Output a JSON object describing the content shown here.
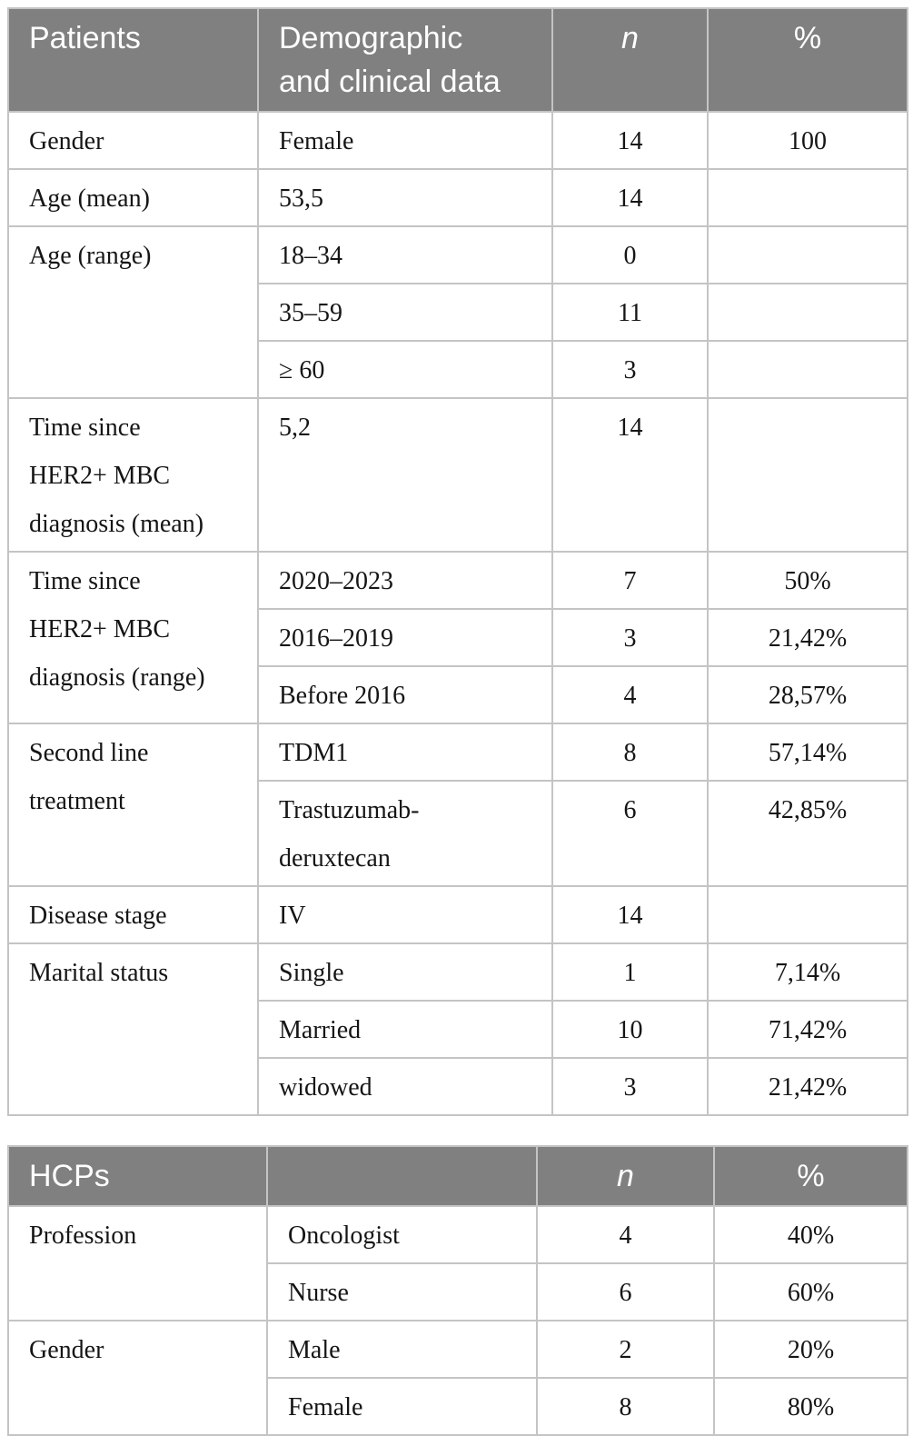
{
  "colors": {
    "header_bg": "#808080",
    "header_text": "#ffffff",
    "grid_line": "#c4c4c4",
    "body_text": "#151515"
  },
  "patients_table": {
    "header": {
      "col1": "Patients",
      "col2": "Demographic\nand clinical data",
      "col3": "n",
      "col4": "%"
    },
    "sections": [
      {
        "label": "Gender",
        "rows": [
          {
            "value": "Female",
            "n": "14",
            "pct": "100"
          }
        ]
      },
      {
        "label": "Age (mean)",
        "rows": [
          {
            "value": "53,5",
            "n": "14",
            "pct": ""
          }
        ]
      },
      {
        "label": "Age (range)",
        "rows": [
          {
            "value": "18–34",
            "n": "0",
            "pct": ""
          },
          {
            "value": "35–59",
            "n": "11",
            "pct": ""
          },
          {
            "value": "≥ 60",
            "n": "3",
            "pct": ""
          }
        ]
      },
      {
        "label": "Time since\nHER2+ MBC\ndiagnosis (mean)",
        "rows": [
          {
            "value": "5,2",
            "n": "14",
            "pct": ""
          }
        ]
      },
      {
        "label": "Time since\nHER2+ MBC\ndiagnosis (range)",
        "rows": [
          {
            "value": "2020–2023",
            "n": "7",
            "pct": "50%"
          },
          {
            "value": "2016–2019",
            "n": "3",
            "pct": "21,42%"
          },
          {
            "value": "Before 2016",
            "n": "4",
            "pct": "28,57%"
          }
        ]
      },
      {
        "label": "Second line\ntreatment",
        "rows": [
          {
            "value": "TDM1",
            "n": "8",
            "pct": "57,14%"
          },
          {
            "value": "Trastuzumab-\nderuxtecan",
            "n": "6",
            "pct": "42,85%"
          }
        ]
      },
      {
        "label": "Disease stage",
        "rows": [
          {
            "value": "IV",
            "n": "14",
            "pct": ""
          }
        ]
      },
      {
        "label": "Marital status",
        "rows": [
          {
            "value": "Single",
            "n": "1",
            "pct": "7,14%"
          },
          {
            "value": "Married",
            "n": "10",
            "pct": "71,42%"
          },
          {
            "value": "widowed",
            "n": "3",
            "pct": "21,42%"
          }
        ]
      }
    ]
  },
  "hcps_table": {
    "header": {
      "col1": "HCPs",
      "col2": "",
      "col3": "n",
      "col4": "%"
    },
    "sections": [
      {
        "label": "Profession",
        "rows": [
          {
            "value": "Oncologist",
            "n": "4",
            "pct": "40%"
          },
          {
            "value": "Nurse",
            "n": "6",
            "pct": "60%"
          }
        ]
      },
      {
        "label": "Gender",
        "rows": [
          {
            "value": "Male",
            "n": "2",
            "pct": "20%"
          },
          {
            "value": "Female",
            "n": "8",
            "pct": "80%"
          }
        ]
      }
    ]
  }
}
